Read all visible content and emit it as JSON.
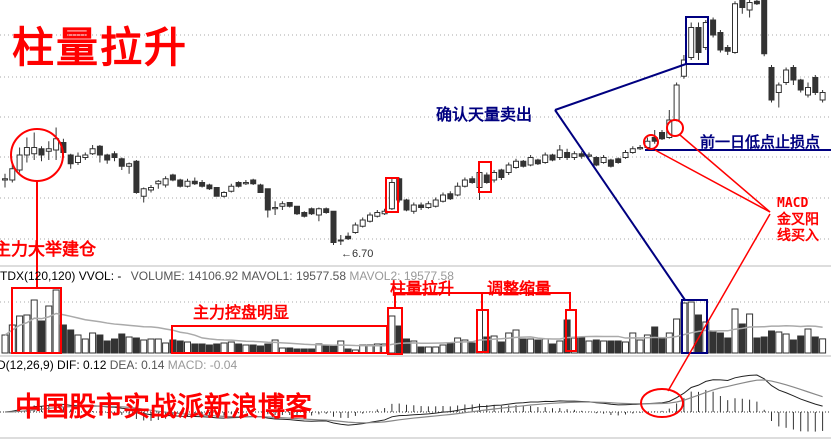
{
  "annotations": {
    "title": "柱量拉升",
    "build_position": "主力大举建仓",
    "control": "主力控盘明显",
    "pillar_rise": "柱量拉升",
    "adjust_shrink": "调整缩量",
    "confirm_sell": "确认天量卖出",
    "stop_loss": "前一日低点止损点",
    "macd_buy_1": "MACD",
    "macd_buy_2": "金叉阳",
    "macd_buy_3": "线买入",
    "watermark": "中国股市实战派新浪博客",
    "low_price": "←6.70"
  },
  "volume_header": {
    "tdx": "TDX(120,120)",
    "vvol": "VVOL: -",
    "volume": "VOLUME: 14106.92",
    "mavol1": "MAVOL1: 19577.58",
    "mavol2": "MAVOL2: 19577.58"
  },
  "macd_header": {
    "name": "D(12,26,9)",
    "dif": "DIF: 0.12",
    "dea": "DEA: 0.14",
    "macd": "MACD: -0.04"
  },
  "colors": {
    "annotation_red": "#ff0000",
    "annotation_navy": "#000080",
    "candle": "#333333",
    "grid": "#aaaaaa"
  },
  "chart_data": {
    "type": "candlestick",
    "ylim": [
      6.7,
      8.66
    ],
    "grid": true,
    "candles_ohlc": [
      [
        7.22,
        7.27,
        7.16,
        7.23
      ],
      [
        7.22,
        7.35,
        7.2,
        7.31
      ],
      [
        7.3,
        7.48,
        7.28,
        7.42
      ],
      [
        7.42,
        7.56,
        7.36,
        7.48
      ],
      [
        7.43,
        7.6,
        7.38,
        7.48
      ],
      [
        7.47,
        7.49,
        7.37,
        7.42
      ],
      [
        7.45,
        7.53,
        7.38,
        7.47
      ],
      [
        7.46,
        7.64,
        7.38,
        7.55
      ],
      [
        7.52,
        7.55,
        7.4,
        7.44
      ],
      [
        7.42,
        7.43,
        7.31,
        7.35
      ],
      [
        7.36,
        7.44,
        7.34,
        7.41
      ],
      [
        7.4,
        7.44,
        7.38,
        7.42
      ],
      [
        7.43,
        7.5,
        7.42,
        7.47
      ],
      [
        7.49,
        7.5,
        7.36,
        7.42
      ],
      [
        7.42,
        7.43,
        7.35,
        7.38
      ],
      [
        7.43,
        7.45,
        7.37,
        7.4
      ],
      [
        7.39,
        7.4,
        7.3,
        7.33
      ],
      [
        7.33,
        7.36,
        7.27,
        7.35
      ],
      [
        7.37,
        7.38,
        7.11,
        7.12
      ],
      [
        7.09,
        7.16,
        7.04,
        7.15
      ],
      [
        7.14,
        7.18,
        7.12,
        7.16
      ],
      [
        7.19,
        7.22,
        7.15,
        7.21
      ],
      [
        7.18,
        7.25,
        7.16,
        7.23
      ],
      [
        7.26,
        7.27,
        7.21,
        7.22
      ],
      [
        7.22,
        7.23,
        7.16,
        7.17
      ],
      [
        7.17,
        7.23,
        7.16,
        7.21
      ],
      [
        7.21,
        7.24,
        7.18,
        7.19
      ],
      [
        7.2,
        7.22,
        7.16,
        7.17
      ],
      [
        7.18,
        7.19,
        7.14,
        7.15
      ],
      [
        7.16,
        7.16,
        7.09,
        7.09
      ],
      [
        7.09,
        7.13,
        7.08,
        7.12
      ],
      [
        7.13,
        7.19,
        7.12,
        7.17
      ],
      [
        7.2,
        7.21,
        7.16,
        7.17
      ],
      [
        7.19,
        7.22,
        7.18,
        7.2
      ],
      [
        7.22,
        7.23,
        7.18,
        7.19
      ],
      [
        7.18,
        7.19,
        7.12,
        7.12
      ],
      [
        7.15,
        7.15,
        6.92,
        6.98
      ],
      [
        6.99,
        7.05,
        6.94,
        7.0
      ],
      [
        7.01,
        7.05,
        6.98,
        7.03
      ],
      [
        7.04,
        7.04,
        7.0,
        7.01
      ],
      [
        7.01,
        7.01,
        6.94,
        6.95
      ],
      [
        6.96,
        6.97,
        6.92,
        6.93
      ],
      [
        6.99,
        7.0,
        6.94,
        6.95
      ],
      [
        6.94,
        7.0,
        6.89,
        6.99
      ],
      [
        6.99,
        7.0,
        6.95,
        6.96
      ],
      [
        6.97,
        6.97,
        6.7,
        6.72
      ],
      [
        6.74,
        6.78,
        6.7,
        6.74
      ],
      [
        6.77,
        6.8,
        6.74,
        6.75
      ],
      [
        6.8,
        6.88,
        6.79,
        6.86
      ],
      [
        6.85,
        6.92,
        6.84,
        6.9
      ],
      [
        6.89,
        6.96,
        6.88,
        6.94
      ],
      [
        6.93,
        6.98,
        6.92,
        6.96
      ],
      [
        6.95,
        6.99,
        6.94,
        6.97
      ],
      [
        6.99,
        7.24,
        6.98,
        7.2
      ],
      [
        7.23,
        7.24,
        7.04,
        7.06
      ],
      [
        7.06,
        7.07,
        6.97,
        6.98
      ],
      [
        6.97,
        7.04,
        6.95,
        7.02
      ],
      [
        7.02,
        7.04,
        6.98,
        7.0
      ],
      [
        7.0,
        7.05,
        6.99,
        7.03
      ],
      [
        7.01,
        7.08,
        7.0,
        7.06
      ],
      [
        7.05,
        7.12,
        7.04,
        7.1
      ],
      [
        7.11,
        7.13,
        7.06,
        7.07
      ],
      [
        7.1,
        7.2,
        7.09,
        7.17
      ],
      [
        7.17,
        7.24,
        7.16,
        7.22
      ],
      [
        7.23,
        7.25,
        7.19,
        7.2
      ],
      [
        7.16,
        7.32,
        7.06,
        7.28
      ],
      [
        7.26,
        7.28,
        7.19,
        7.2
      ],
      [
        7.22,
        7.3,
        7.2,
        7.28
      ],
      [
        7.3,
        7.31,
        7.22,
        7.24
      ],
      [
        7.28,
        7.36,
        7.26,
        7.34
      ],
      [
        7.32,
        7.39,
        7.31,
        7.37
      ],
      [
        7.37,
        7.38,
        7.32,
        7.33
      ],
      [
        7.34,
        7.42,
        7.33,
        7.4
      ],
      [
        7.38,
        7.39,
        7.34,
        7.35
      ],
      [
        7.36,
        7.44,
        7.35,
        7.42
      ],
      [
        7.42,
        7.43,
        7.37,
        7.38
      ],
      [
        7.4,
        7.5,
        7.38,
        7.46
      ],
      [
        7.44,
        7.47,
        7.38,
        7.4
      ],
      [
        7.4,
        7.45,
        7.38,
        7.43
      ],
      [
        7.43,
        7.45,
        7.39,
        7.41
      ],
      [
        7.41,
        7.44,
        7.4,
        7.42
      ],
      [
        7.4,
        7.41,
        7.33,
        7.34
      ],
      [
        7.36,
        7.42,
        7.35,
        7.4
      ],
      [
        7.38,
        7.39,
        7.32,
        7.33
      ],
      [
        7.39,
        7.4,
        7.35,
        7.36
      ],
      [
        7.4,
        7.46,
        7.39,
        7.44
      ],
      [
        7.44,
        7.49,
        7.43,
        7.47
      ],
      [
        7.47,
        7.5,
        7.46,
        7.48
      ],
      [
        7.48,
        7.56,
        7.47,
        7.53
      ],
      [
        7.56,
        7.62,
        7.51,
        7.53
      ],
      [
        7.6,
        7.62,
        7.54,
        7.55
      ],
      [
        7.56,
        7.78,
        7.55,
        7.7
      ],
      [
        7.7,
        8.0,
        7.69,
        7.98
      ],
      [
        8.05,
        8.22,
        8.03,
        8.18
      ],
      [
        8.2,
        8.48,
        8.18,
        8.44
      ],
      [
        8.44,
        8.48,
        8.18,
        8.24
      ],
      [
        8.28,
        8.5,
        8.26,
        8.48
      ],
      [
        8.5,
        8.52,
        8.36,
        8.38
      ],
      [
        8.4,
        8.42,
        8.24,
        8.26
      ],
      [
        8.28,
        8.3,
        8.22,
        8.25
      ],
      [
        8.24,
        8.65,
        8.23,
        8.63
      ],
      [
        8.66,
        8.67,
        8.55,
        8.6
      ],
      [
        8.58,
        8.66,
        8.52,
        8.64
      ],
      [
        8.65,
        8.67,
        8.62,
        8.63
      ],
      [
        8.66,
        8.67,
        8.21,
        8.23
      ],
      [
        8.12,
        8.14,
        7.84,
        7.86
      ],
      [
        7.92,
        8.0,
        7.8,
        7.98
      ],
      [
        8.0,
        8.12,
        7.98,
        8.1
      ],
      [
        8.12,
        8.14,
        7.98,
        8.02
      ],
      [
        8.02,
        8.03,
        7.92,
        7.94
      ],
      [
        7.9,
        8.0,
        7.88,
        7.96
      ],
      [
        8.04,
        8.06,
        7.9,
        7.92
      ],
      [
        7.86,
        7.94,
        7.84,
        7.92
      ]
    ],
    "volume": [
      18000,
      28000,
      37000,
      38000,
      53000,
      32000,
      47000,
      63000,
      28000,
      23000,
      18000,
      14000,
      20000,
      18000,
      12000,
      14000,
      19000,
      16000,
      15000,
      13000,
      14000,
      14000,
      10000,
      13000,
      12000,
      11000,
      9000,
      9000,
      8000,
      9000,
      10000,
      11000,
      9000,
      8000,
      8000,
      7000,
      9000,
      13000,
      5000,
      5000,
      4000,
      4000,
      4000,
      9000,
      8000,
      7000,
      12000,
      4000,
      3000,
      8000,
      8000,
      9000,
      9000,
      37000,
      27000,
      14000,
      12000,
      6000,
      6000,
      6000,
      8000,
      10000,
      15000,
      13000,
      10000,
      43000,
      16000,
      17000,
      11000,
      20000,
      23000,
      14000,
      14000,
      13000,
      14000,
      9000,
      12000,
      33000,
      15000,
      16000,
      12000,
      13000,
      12000,
      12000,
      12000,
      11000,
      20000,
      13000,
      18000,
      26000,
      15000,
      20000,
      34000,
      50000,
      51000,
      38000,
      31000,
      21000,
      20000,
      15000,
      44000,
      29000,
      39000,
      15000,
      16000,
      22000,
      21000,
      19000,
      13000,
      17000,
      24000,
      16000,
      14106.92
    ]
  }
}
